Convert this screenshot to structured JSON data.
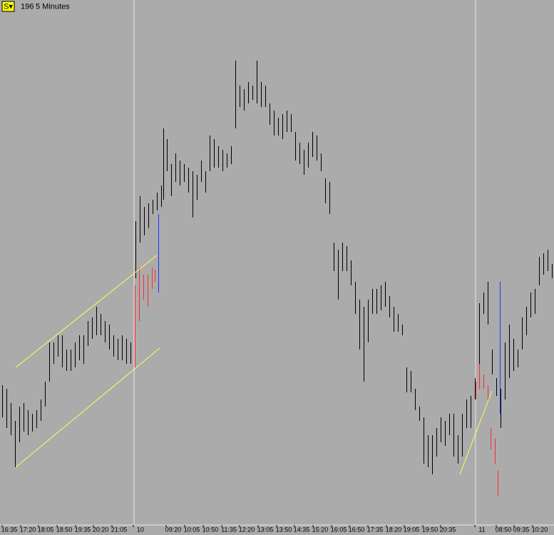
{
  "chart_data": {
    "type": "ohlc",
    "symbol_button": "S▾",
    "count": 196,
    "interval": "5 Minutes",
    "xlim": [
      0,
      777
    ],
    "ylim": [
      0,
      735
    ],
    "xticks": [
      {
        "value": 13,
        "label": "16:35"
      },
      {
        "value": 39,
        "label": "17:20"
      },
      {
        "value": 64,
        "label": "18:05"
      },
      {
        "value": 90,
        "label": "18:50"
      },
      {
        "value": 116,
        "label": "19:35"
      },
      {
        "value": 141,
        "label": "20:20"
      },
      {
        "value": 167,
        "label": "21:05"
      },
      {
        "value": 197,
        "label": "10"
      },
      {
        "value": 243,
        "label": "09:20"
      },
      {
        "value": 269,
        "label": "10:05"
      },
      {
        "value": 295,
        "label": "10:50"
      },
      {
        "value": 321,
        "label": "11:35"
      },
      {
        "value": 346,
        "label": "12:20"
      },
      {
        "value": 372,
        "label": "13:05"
      },
      {
        "value": 398,
        "label": "13:50"
      },
      {
        "value": 423,
        "label": "14:35"
      },
      {
        "value": 449,
        "label": "15:20"
      },
      {
        "value": 475,
        "label": "16:05"
      },
      {
        "value": 500,
        "label": "16:50"
      },
      {
        "value": 526,
        "label": "17:35"
      },
      {
        "value": 552,
        "label": "18:20"
      },
      {
        "value": 577,
        "label": "19:05"
      },
      {
        "value": 603,
        "label": "19:50"
      },
      {
        "value": 628,
        "label": "20:35"
      },
      {
        "value": 676,
        "label": "11"
      },
      {
        "value": 706,
        "label": "08:50"
      },
      {
        "value": 731,
        "label": "09:35"
      },
      {
        "value": 757,
        "label": "10:20"
      }
    ],
    "separators": [
      188,
      667
    ],
    "series": [
      {
        "color": "#000000",
        "x": [
          3,
          9,
          15,
          21,
          27,
          33,
          39,
          45,
          51,
          57,
          63,
          69,
          75,
          81,
          87,
          93,
          99,
          105,
          111,
          117,
          123,
          129,
          135,
          141,
          147,
          153,
          159,
          165,
          171,
          177,
          183,
          190,
          196,
          202,
          208,
          214,
          220,
          226,
          229,
          234,
          240,
          246,
          252,
          258,
          264,
          270,
          276,
          282,
          288,
          294,
          300,
          306,
          312,
          318,
          324,
          330,
          336,
          342,
          348,
          354,
          360,
          366,
          372,
          378,
          384,
          390,
          396,
          402,
          408,
          414,
          420,
          426,
          432,
          438,
          444,
          450,
          456,
          462,
          468,
          474,
          480,
          486,
          492,
          498,
          504,
          510,
          516,
          522,
          528,
          534,
          540,
          546,
          552,
          558,
          564,
          570,
          576,
          582,
          588,
          594,
          600,
          606,
          612,
          618,
          624,
          630,
          636,
          642,
          648,
          654,
          660,
          666,
          672,
          678,
          684,
          690,
          696,
          702,
          708,
          714,
          720,
          726,
          732,
          738,
          744,
          750,
          756,
          762,
          768,
          774
        ],
        "high": [
          195,
          190,
          170,
          145,
          165,
          170,
          160,
          155,
          160,
          175,
          200,
          255,
          255,
          265,
          265,
          245,
          245,
          255,
          265,
          265,
          285,
          290,
          305,
          295,
          285,
          280,
          265,
          260,
          265,
          260,
          255,
          425,
          460,
          445,
          450,
          455,
          465,
          475,
          555,
          540,
          505,
          520,
          510,
          505,
          500,
          495,
          490,
          510,
          495,
          545,
          540,
          530,
          525,
          520,
          530,
          650,
          615,
          610,
          620,
          615,
          650,
          620,
          615,
          590,
          580,
          570,
          575,
          580,
          575,
          550,
          535,
          525,
          535,
          550,
          545,
          520,
          485,
          480,
          395,
          385,
          395,
          390,
          370,
          340,
          315,
          305,
          315,
          330,
          330,
          335,
          340,
          320,
          305,
          295,
          280,
          220,
          215,
          190,
          165,
          150,
          125,
          125,
          135,
          150,
          145,
          155,
          155,
          125,
          155,
          175,
          180,
          205,
          310,
          325,
          340,
          245,
          205,
          190,
          255,
          280,
          260,
          245,
          290,
          305,
          325,
          330,
          375,
          380,
          385,
          365
        ],
        "low": [
          150,
          135,
          125,
          80,
          115,
          130,
          125,
          130,
          135,
          145,
          165,
          200,
          225,
          235,
          220,
          215,
          215,
          220,
          230,
          225,
          250,
          260,
          265,
          265,
          255,
          245,
          235,
          230,
          230,
          225,
          225,
          345,
          395,
          405,
          415,
          435,
          440,
          445,
          455,
          495,
          460,
          480,
          475,
          480,
          465,
          430,
          455,
          480,
          465,
          495,
          500,
          500,
          495,
          500,
          505,
          555,
          585,
          580,
          590,
          595,
          590,
          585,
          585,
          560,
          545,
          545,
          540,
          550,
          550,
          510,
          505,
          490,
          500,
          515,
          510,
          495,
          450,
          435,
          355,
          315,
          355,
          355,
          335,
          295,
          245,
          200,
          255,
          295,
          295,
          300,
          305,
          290,
          270,
          270,
          265,
          185,
          185,
          160,
          145,
          85,
          80,
          70,
          95,
          115,
          110,
          125,
          95,
          85,
          95,
          135,
          135,
          175,
          215,
          295,
          280,
          210,
          180,
          135,
          175,
          205,
          215,
          220,
          245,
          265,
          290,
          295,
          335,
          350,
          355,
          345
        ]
      },
      {
        "color": "#ff2a2a",
        "x": [
          189,
          195,
          201,
          207,
          213,
          217,
          667,
          672,
          678,
          684,
          688,
          694,
          698
        ],
        "high": [
          335,
          360,
          350,
          350,
          360,
          357,
          200,
          225,
          210,
          195,
          135,
          120,
          75
        ],
        "low": [
          220,
          285,
          315,
          305,
          330,
          340,
          175,
          190,
          190,
          175,
          105,
          85,
          40
        ]
      },
      {
        "color": "#2233ff",
        "x": [
          222,
          701
        ],
        "high": [
          435,
          340
        ],
        "low": [
          325,
          155
        ]
      }
    ],
    "trendlines": [
      {
        "color": "#ffff55",
        "x": [
          22,
          220
        ],
        "y": [
          220,
          377
        ]
      },
      {
        "color": "#ffff55",
        "x": [
          22,
          224
        ],
        "y": [
          80,
          247
        ]
      },
      {
        "color": "#ffff55",
        "x": [
          645,
          690
        ],
        "y": [
          70,
          187
        ]
      }
    ]
  }
}
